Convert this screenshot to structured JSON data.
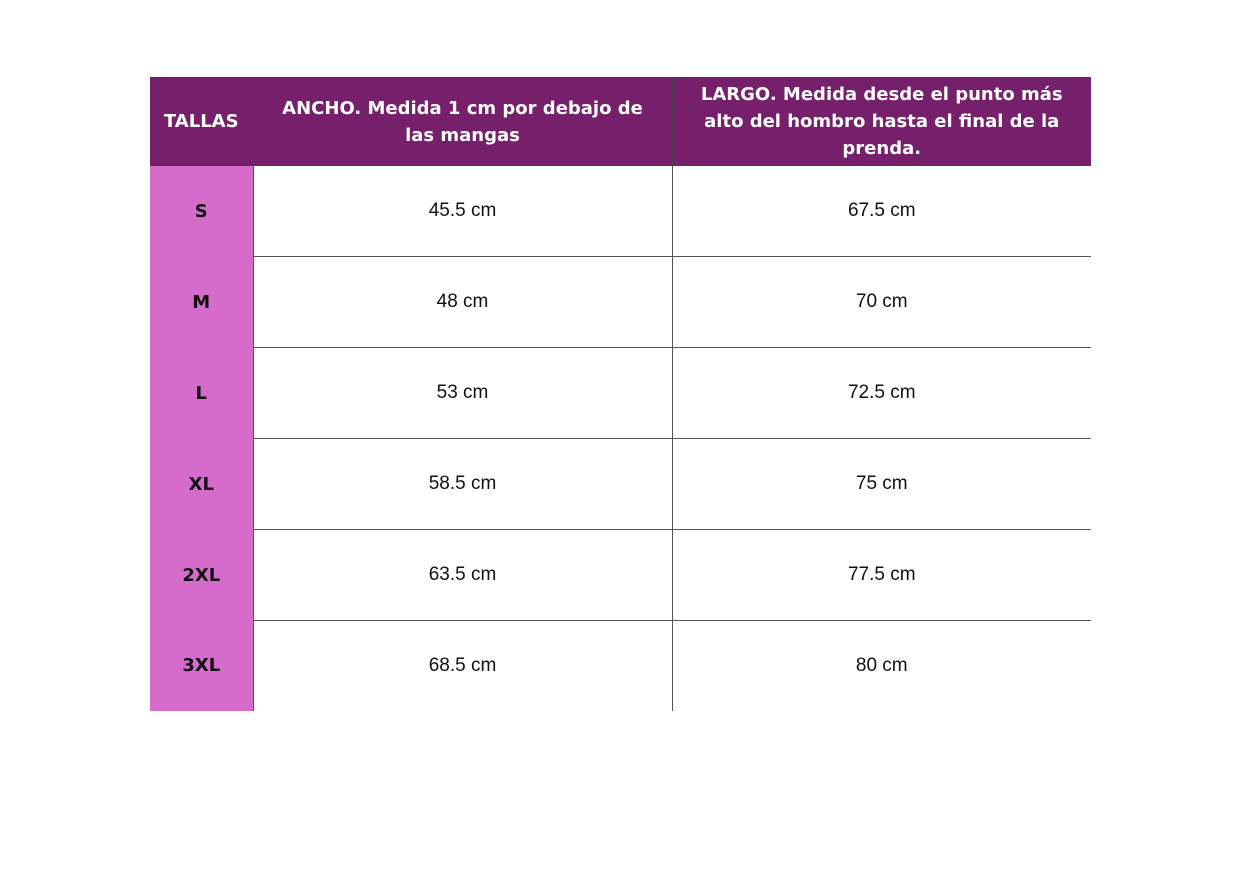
{
  "headers": [
    "TALLAS",
    "ANCHO. Medida 1 cm por debajo de las mangas",
    "LARGO. Medida desde el punto más alto del hombro hasta el final de la prenda."
  ],
  "rows": [
    {
      "size": "S",
      "ancho": "45.5 cm",
      "largo": "67.5 cm"
    },
    {
      "size": "M",
      "ancho": "48 cm",
      "largo": "70 cm"
    },
    {
      "size": "L",
      "ancho": "53 cm",
      "largo": "72.5 cm"
    },
    {
      "size": "XL",
      "ancho": "58.5 cm",
      "largo": "75 cm"
    },
    {
      "size": "2XL",
      "ancho": "63.5 cm",
      "largo": "77.5 cm"
    },
    {
      "size": "3XL",
      "ancho": "68.5 cm",
      "largo": "80 cm"
    }
  ],
  "colors": {
    "header_bg": "#761f6b",
    "size_bg": "#d56bca"
  }
}
